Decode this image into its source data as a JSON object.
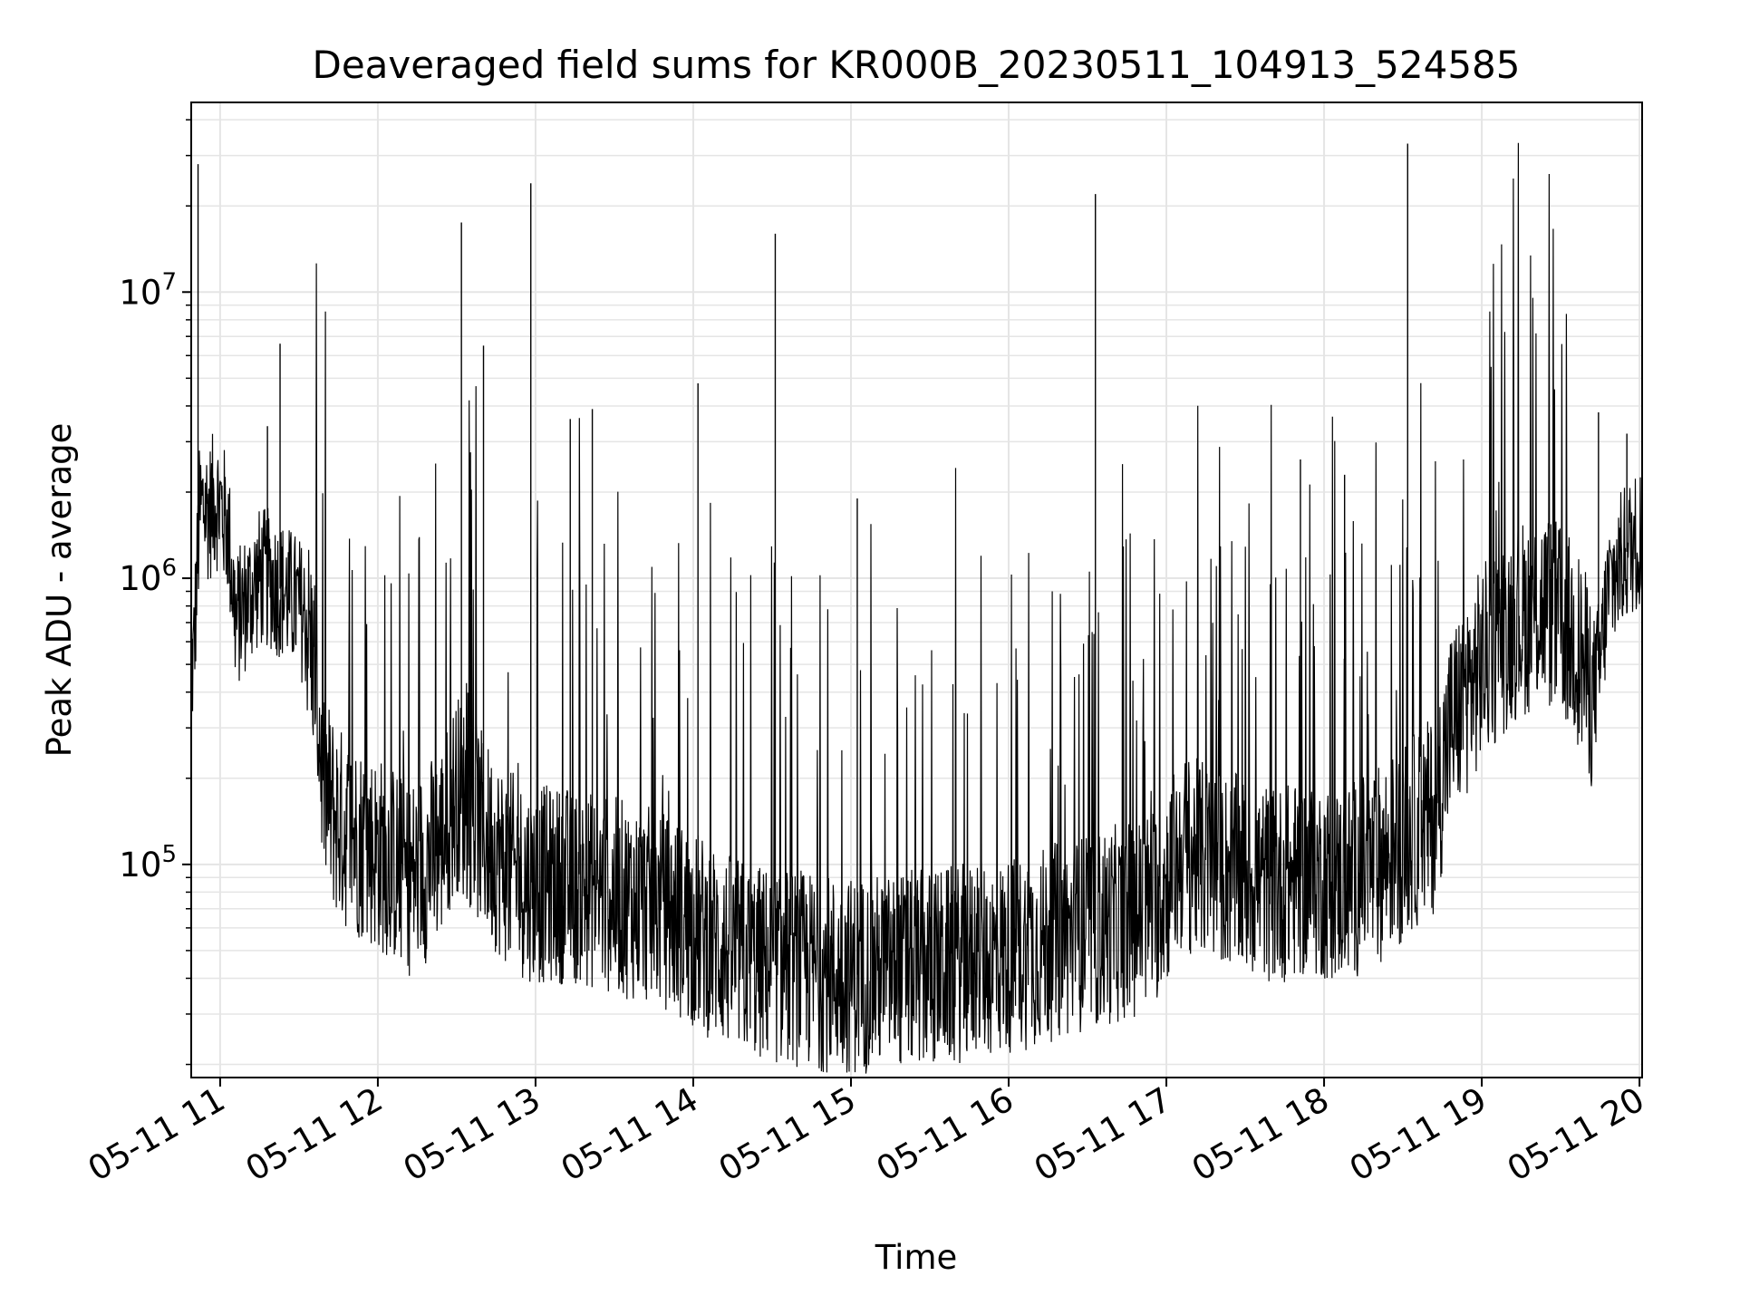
{
  "chart_data": {
    "type": "line",
    "title": "Deaveraged field sums for KR000B_20230511_104913_524585",
    "xlabel": "Time",
    "ylabel": "Peak ADU - average",
    "yscale": "log",
    "grid": true,
    "legend": "none",
    "line_color": "#000000",
    "grid_color": "#e5e5e5",
    "xlim": [
      "05-11 10:49",
      "05-11 20:01"
    ],
    "ylim": [
      18000,
      46000000
    ],
    "x_tick_labels": [
      "05-11 11",
      "05-11 12",
      "05-11 13",
      "05-11 14",
      "05-11 15",
      "05-11 16",
      "05-11 17",
      "05-11 18",
      "05-11 19",
      "05-11 20"
    ],
    "y_tick_labels": [
      {
        "base": "10",
        "exp": "5"
      },
      {
        "base": "10",
        "exp": "6"
      },
      {
        "base": "10",
        "exp": "7"
      }
    ],
    "x_hours": [
      10.83,
      10.87,
      10.9,
      10.93,
      10.97,
      11.0,
      11.05,
      11.1,
      11.15,
      11.2,
      11.25,
      11.3,
      11.35,
      11.4,
      11.45,
      11.5,
      11.55,
      11.6,
      11.65,
      11.7,
      11.75,
      11.8,
      11.9,
      12.0,
      12.1,
      12.2,
      12.3,
      12.4,
      12.5,
      12.6,
      12.7,
      12.8,
      12.9,
      13.0,
      13.2,
      13.4,
      13.6,
      13.8,
      14.0,
      14.2,
      14.4,
      14.6,
      14.8,
      15.0,
      15.2,
      15.4,
      15.6,
      15.8,
      16.0,
      16.2,
      16.4,
      16.6,
      16.8,
      16.95,
      17.1,
      17.3,
      17.5,
      17.7,
      17.9,
      18.1,
      18.3,
      18.5,
      18.7,
      18.8,
      19.0,
      19.2,
      19.4,
      19.6,
      19.7,
      19.75,
      19.8,
      19.9,
      20.0,
      20.03
    ],
    "series": [
      {
        "baseline": [
          500000,
          1700000,
          1800000,
          1700000,
          1900000,
          1800000,
          1500000,
          700000,
          800000,
          900000,
          1000000,
          1000000,
          950000,
          900000,
          850000,
          800000,
          700000,
          500000,
          200000,
          160000,
          140000,
          130000,
          120000,
          110000,
          100000,
          90000,
          100000,
          120000,
          180000,
          150000,
          120000,
          100000,
          90000,
          85000,
          85000,
          80000,
          75000,
          70000,
          60000,
          50000,
          45000,
          44000,
          42000,
          41000,
          42000,
          43000,
          44000,
          46000,
          48000,
          52000,
          56000,
          60000,
          65000,
          75000,
          110000,
          100000,
          90000,
          85000,
          90000,
          85000,
          95000,
          120000,
          150000,
          300000,
          500000,
          700000,
          800000,
          600000,
          400000,
          500000,
          900000,
          1200000,
          1400000,
          1500000
        ],
        "spike_hours": [
          10.86,
          11.38,
          11.3,
          12.53,
          12.67,
          12.97,
          13.22,
          13.36,
          14.03,
          14.52,
          15.04,
          16.55,
          17.85,
          18.13,
          18.53,
          19.74,
          19.92
        ],
        "spike_values": [
          28000000,
          6600000,
          3400000,
          17500000,
          6500000,
          24000000,
          3600000,
          3900000,
          4800000,
          16000000,
          1900000,
          22000000,
          2600000,
          2300000,
          33000000,
          3800000,
          3200000
        ]
      }
    ]
  }
}
